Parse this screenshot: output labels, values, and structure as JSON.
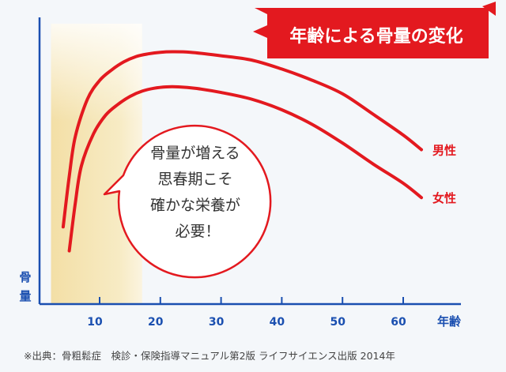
{
  "chart_data": {
    "type": "line",
    "title": "年齢による骨量の変化",
    "xlabel": "年齢",
    "ylabel": "骨量",
    "x_ticks": [
      10,
      20,
      30,
      40,
      50,
      60
    ],
    "xlim": [
      2,
      70
    ],
    "ylim": [
      0,
      100
    ],
    "highlight_band": [
      2,
      17
    ],
    "grid": false,
    "series": [
      {
        "name": "男性",
        "color": "#e3191f",
        "x": [
          4,
          5,
          6,
          8,
          10,
          12,
          14,
          16,
          18,
          20,
          22,
          25,
          30,
          35,
          40,
          45,
          50,
          55,
          60,
          63
        ],
        "y": [
          29,
          48,
          63,
          77,
          84,
          88,
          91,
          93,
          94,
          94.6,
          94.8,
          94.6,
          93.3,
          91.7,
          88.3,
          84.1,
          79.0,
          71.4,
          63.5,
          58
        ]
      },
      {
        "name": "女性",
        "color": "#e3191f",
        "x": [
          5,
          6,
          7,
          9,
          11,
          13,
          15,
          17,
          19,
          21,
          23,
          26,
          30,
          35,
          40,
          45,
          50,
          55,
          60,
          63
        ],
        "y": [
          20,
          38,
          52,
          64,
          71,
          75,
          78,
          80,
          81.1,
          81.6,
          81.6,
          81.0,
          79.5,
          77.0,
          73.0,
          67.5,
          60.5,
          52.7,
          45.4,
          40
        ]
      }
    ],
    "annotation": {
      "lines": [
        "骨量が増える",
        "思春期こそ",
        "確かな栄養が",
        "必要！"
      ]
    }
  },
  "source_note": "※出典：骨粗鬆症　検診・保険指導マニュアル第2版 ライフサイエンス出版 2014年"
}
